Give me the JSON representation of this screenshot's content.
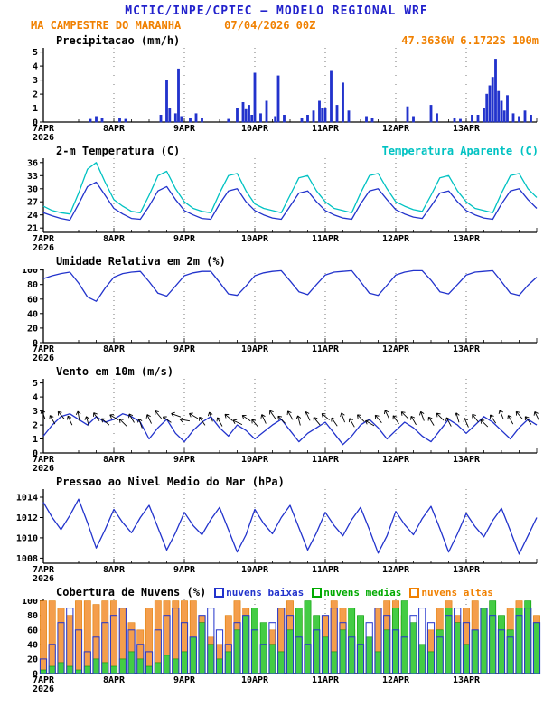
{
  "header": {
    "title": "MCTIC/INPE/CPTEC — MODELO REGIONAL WRF",
    "station": "MA CAMPESTRE DO MARANHA",
    "run": "07/04/2026 00Z",
    "location": "47.3636W 6.1722S 100m"
  },
  "colors": {
    "title_blue": "#2222cc",
    "orange": "#f08000",
    "cyan": "#00c2c2",
    "line_blue": "#2233cc",
    "green": "#00aa00",
    "axis_black": "#000000"
  },
  "x_axis": {
    "labels": [
      "7APR",
      "8APR",
      "9APR",
      "10APR",
      "11APR",
      "12APR",
      "13APR"
    ],
    "sub_label": "2026",
    "total_hours": 168
  },
  "chart_data": [
    {
      "id": "precipitacao",
      "type": "bar",
      "title": "Precipitacao (mm/h)",
      "ylim": [
        0,
        5.3
      ],
      "yticks": [
        0,
        1,
        2,
        3,
        4,
        5
      ],
      "x_step_hours": 1,
      "series": [
        {
          "name": "precipitacao",
          "color": "#2233cc",
          "fill": "#2233cc",
          "values": [
            0,
            0,
            0,
            0,
            0,
            0,
            0,
            0,
            0,
            0,
            0,
            0,
            0,
            0,
            0,
            0,
            0.2,
            0,
            0.4,
            0,
            0.3,
            0,
            0,
            0,
            0,
            0,
            0.3,
            0,
            0.2,
            0,
            0,
            0,
            0,
            0,
            0,
            0,
            0,
            0,
            0,
            0,
            0.5,
            0,
            3,
            1,
            0,
            0.6,
            3.8,
            0.4,
            0,
            0,
            0.3,
            0,
            0.6,
            0,
            0.3,
            0,
            0,
            0,
            0,
            0,
            0,
            0,
            0,
            0.2,
            0,
            0,
            1,
            0,
            1.4,
            0.9,
            1.2,
            0.5,
            3.5,
            0,
            0.6,
            0,
            1.5,
            0,
            0,
            0.4,
            3.3,
            0,
            0.5,
            0,
            0,
            0,
            0,
            0,
            0.3,
            0,
            0.5,
            0,
            0.8,
            0,
            1.5,
            1,
            1,
            0,
            3.7,
            0,
            1.2,
            0,
            2.8,
            0,
            0.8,
            0,
            0,
            0,
            0,
            0,
            0.4,
            0,
            0.3,
            0,
            0,
            0,
            0,
            0,
            0,
            0,
            0,
            0,
            0,
            0,
            1.1,
            0,
            0.4,
            0,
            0,
            0,
            0,
            0,
            1.2,
            0,
            0.6,
            0,
            0,
            0,
            0,
            0,
            0.3,
            0,
            0.2,
            0,
            0,
            0,
            0.5,
            0,
            0.5,
            0,
            1,
            2,
            2.6,
            3.2,
            4.5,
            2.2,
            1.5,
            0.8,
            1.9,
            0,
            0.6,
            0,
            0.4,
            0,
            0.8,
            0,
            0.5,
            0
          ]
        }
      ]
    },
    {
      "id": "temperatura",
      "type": "line",
      "title": "2-m Temperatura (C)",
      "legend_right": {
        "label": "Temperatura Aparente (C)",
        "color": "#00c2c2"
      },
      "ylim": [
        20,
        37
      ],
      "yticks": [
        21,
        24,
        27,
        30,
        33,
        36
      ],
      "x_step_hours": 3,
      "series": [
        {
          "name": "2-m Temperatura",
          "color": "#2233cc",
          "values": [
            24.5,
            23.8,
            23.2,
            22.8,
            26.5,
            30.5,
            31.5,
            28.5,
            25.5,
            24.2,
            23.2,
            23,
            26,
            29.5,
            30.5,
            27.5,
            25,
            24,
            23.2,
            23,
            26.5,
            29.5,
            30,
            27,
            25,
            24,
            23.3,
            23,
            26,
            29,
            29.5,
            27,
            25,
            24,
            23.3,
            23,
            26.5,
            29.5,
            30,
            27.5,
            25.2,
            24.2,
            23.5,
            23.2,
            26,
            29,
            29.5,
            27,
            25,
            24,
            23.3,
            23,
            26.5,
            29.5,
            30,
            27.5,
            25.5
          ]
        },
        {
          "name": "Temperatura Aparente",
          "color": "#00c2c2",
          "values": [
            26,
            25,
            24.5,
            24.2,
            29,
            34.5,
            36,
            31.5,
            27.5,
            26,
            24.8,
            24.5,
            28.5,
            33,
            34,
            30,
            27,
            25.5,
            24.8,
            24.5,
            29,
            33,
            33.5,
            29.5,
            26.5,
            25.5,
            25,
            24.5,
            28.5,
            32.5,
            33,
            29.5,
            27,
            25.5,
            25,
            24.5,
            29,
            33,
            33.5,
            30,
            27,
            26,
            25.2,
            24.8,
            28.5,
            32.5,
            33,
            29.5,
            27,
            25.5,
            25,
            24.5,
            29,
            33,
            33.5,
            30,
            28
          ]
        }
      ]
    },
    {
      "id": "umidade",
      "type": "line",
      "title": "Umidade Relativa em 2m (%)",
      "ylim": [
        0,
        102
      ],
      "yticks": [
        0,
        20,
        40,
        60,
        80,
        100
      ],
      "x_step_hours": 3,
      "series": [
        {
          "name": "umidade relativa",
          "color": "#2233cc",
          "values": [
            88,
            92,
            95,
            97,
            82,
            63,
            57,
            75,
            90,
            95,
            97,
            98,
            84,
            68,
            64,
            78,
            92,
            96,
            98,
            98,
            83,
            67,
            65,
            78,
            92,
            96,
            98,
            99,
            85,
            70,
            66,
            80,
            93,
            97,
            98,
            99,
            84,
            68,
            65,
            79,
            93,
            97,
            99,
            99,
            86,
            70,
            67,
            80,
            93,
            97,
            98,
            99,
            84,
            68,
            65,
            79,
            90
          ]
        }
      ]
    },
    {
      "id": "vento",
      "type": "line",
      "title": "Vento em 10m (m/s)",
      "ylim": [
        0,
        5.3
      ],
      "yticks": [
        0,
        1,
        2,
        3,
        4,
        5
      ],
      "x_step_hours": 3,
      "series": [
        {
          "name": "velocidade do vento",
          "color": "#2233cc",
          "values": [
            1.2,
            2,
            2.6,
            2.8,
            2.4,
            2,
            2.6,
            2.2,
            2.4,
            2.8,
            2.6,
            2.2,
            1,
            1.8,
            2.4,
            1.4,
            0.8,
            1.6,
            2.2,
            2.6,
            1.8,
            1.2,
            2,
            1.6,
            1,
            1.5,
            2,
            2.4,
            1.6,
            0.8,
            1.4,
            1.8,
            2.2,
            1.4,
            0.6,
            1.2,
            2,
            2.4,
            1.8,
            1,
            1.6,
            2.2,
            1.8,
            1.2,
            0.8,
            1.6,
            2.4,
            2,
            1.4,
            2,
            2.6,
            2.2,
            1.6,
            1,
            1.8,
            2.4,
            2
          ]
        }
      ],
      "barbs": {
        "step_hours": 3,
        "y": 2.45,
        "dirs": [
          250,
          240,
          230,
          245,
          260,
          255,
          235,
          220,
          210,
          225,
          240,
          250,
          245,
          230,
          215,
          200,
          190,
          210,
          235,
          250,
          240,
          220,
          205,
          215,
          230,
          245,
          235,
          225,
          240,
          255,
          245,
          230,
          220,
          235,
          250,
          240,
          225,
          210,
          230,
          245,
          235,
          225,
          240,
          250,
          238,
          226,
          242,
          254,
          246,
          232,
          224,
          236,
          248,
          241,
          229,
          233,
          244
        ]
      }
    },
    {
      "id": "pressao",
      "type": "line",
      "title": "Pressao ao Nivel Medio do Mar (hPa)",
      "ylim": [
        1007.5,
        1014.8
      ],
      "yticks": [
        1008,
        1010,
        1012,
        1014
      ],
      "x_step_hours": 3,
      "series": [
        {
          "name": "pressao nivel do mar",
          "color": "#2233cc",
          "values": [
            1013.5,
            1012,
            1010.8,
            1012.2,
            1013.8,
            1011.5,
            1009,
            1010.8,
            1012.8,
            1011.5,
            1010.5,
            1012,
            1013.2,
            1011,
            1008.8,
            1010.5,
            1012.5,
            1011.2,
            1010.3,
            1011.8,
            1013,
            1010.8,
            1008.6,
            1010.3,
            1012.8,
            1011.4,
            1010.4,
            1012,
            1013.2,
            1011,
            1008.8,
            1010.5,
            1012.5,
            1011.2,
            1010.2,
            1011.8,
            1013,
            1010.8,
            1008.5,
            1010.2,
            1012.6,
            1011.3,
            1010.3,
            1011.9,
            1013.1,
            1010.9,
            1008.6,
            1010.4,
            1012.4,
            1011.1,
            1010.1,
            1011.7,
            1012.9,
            1010.7,
            1008.4,
            1010.2,
            1012
          ]
        }
      ]
    },
    {
      "id": "nuvens",
      "type": "bar",
      "title": "Cobertura de Nuvens (%)",
      "ylim": [
        0,
        102
      ],
      "yticks": [
        0,
        20,
        40,
        60,
        80,
        100
      ],
      "x_step_hours": 3,
      "legend": [
        {
          "label": "nuvens baixas",
          "color": "#2233cc"
        },
        {
          "label": "nuvens medias",
          "color": "#00aa00"
        },
        {
          "label": "nuvens altas",
          "color": "#f08000"
        }
      ],
      "series": [
        {
          "name": "nuvens altas",
          "color": "#e07b00",
          "fill": "#f49e4c",
          "values": [
            100,
            100,
            90,
            80,
            100,
            100,
            95,
            100,
            100,
            90,
            70,
            60,
            90,
            100,
            100,
            100,
            100,
            100,
            80,
            50,
            40,
            80,
            100,
            90,
            30,
            20,
            60,
            90,
            100,
            80,
            40,
            20,
            80,
            100,
            90,
            60,
            30,
            50,
            90,
            100,
            100,
            80,
            40,
            20,
            60,
            90,
            100,
            80,
            90,
            100,
            80,
            50,
            70,
            90,
            100,
            90,
            80
          ]
        },
        {
          "name": "nuvens medias",
          "color": "#009900",
          "fill": "#44cc44",
          "values": [
            5,
            10,
            15,
            10,
            5,
            10,
            20,
            15,
            10,
            20,
            30,
            20,
            10,
            15,
            25,
            20,
            30,
            50,
            70,
            40,
            20,
            30,
            60,
            80,
            90,
            70,
            40,
            30,
            60,
            90,
            100,
            80,
            50,
            30,
            60,
            90,
            80,
            50,
            30,
            60,
            90,
            100,
            70,
            40,
            30,
            60,
            90,
            70,
            40,
            60,
            90,
            100,
            80,
            60,
            90,
            100,
            70
          ]
        },
        {
          "name": "nuvens baixas",
          "color": "#2233cc",
          "fill": "none",
          "values": [
            20,
            40,
            70,
            90,
            60,
            30,
            50,
            70,
            80,
            90,
            60,
            40,
            30,
            60,
            80,
            90,
            70,
            50,
            80,
            90,
            60,
            40,
            70,
            80,
            60,
            40,
            70,
            90,
            80,
            50,
            40,
            60,
            80,
            90,
            70,
            50,
            40,
            70,
            90,
            80,
            60,
            50,
            80,
            90,
            70,
            50,
            80,
            90,
            70,
            60,
            90,
            80,
            60,
            50,
            80,
            90,
            70
          ]
        }
      ]
    }
  ]
}
